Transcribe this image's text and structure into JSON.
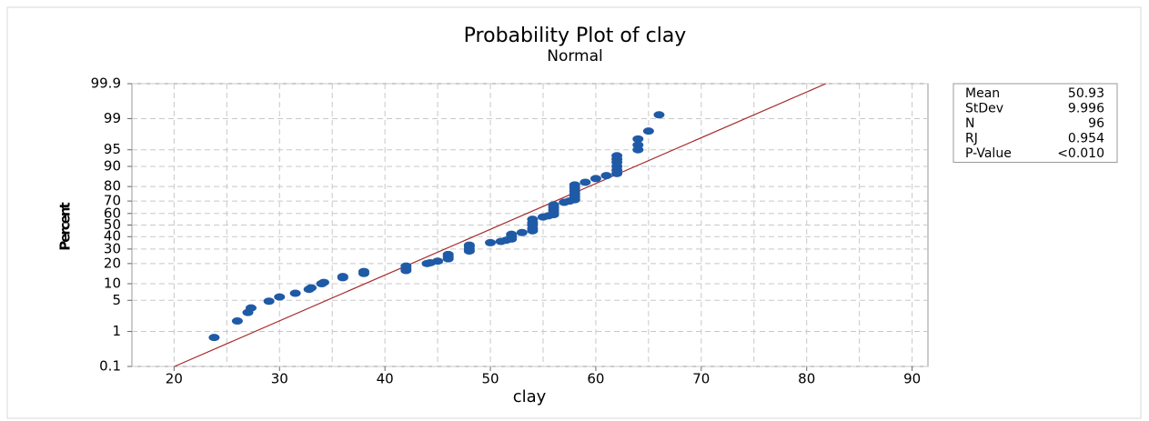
{
  "chart_data": {
    "type": "probability",
    "title": "Probability Plot of clay",
    "subtitle": "Normal",
    "x_label": "clay",
    "y_label": "Percent",
    "color": "#1f5aa6",
    "fit_color": "#a52a2a",
    "x": [
      23.8,
      26,
      27,
      27.3,
      29,
      30,
      31.5,
      32.8,
      33,
      34,
      34.2,
      36,
      36,
      38,
      38,
      42,
      42,
      42,
      44,
      44.3,
      45,
      46,
      46,
      46,
      48,
      48,
      48,
      48,
      50,
      51,
      51.5,
      52,
      52,
      52,
      53,
      54,
      54,
      54,
      54,
      54,
      55,
      55.5,
      56,
      56,
      56,
      56,
      56,
      57,
      57.5,
      58,
      58,
      58,
      58,
      58,
      58,
      59,
      60,
      61,
      62,
      62,
      62,
      62,
      62,
      62,
      64,
      64,
      64,
      65,
      66
    ],
    "values": [
      0.7,
      1.8,
      2.8,
      3.5,
      4.8,
      5.8,
      6.8,
      8,
      8.5,
      10,
      10.5,
      12.5,
      13,
      14.5,
      15.5,
      16,
      17,
      18.5,
      20,
      20.5,
      21.5,
      23,
      24.5,
      26,
      28.5,
      30,
      32,
      33,
      35,
      36,
      37,
      38,
      40,
      42,
      43.5,
      45,
      47,
      50,
      52,
      55,
      57,
      58,
      59,
      61,
      63,
      65,
      67,
      69,
      70,
      71,
      73,
      75,
      77,
      79,
      81,
      82.5,
      84.5,
      86,
      87,
      88.5,
      90,
      91.5,
      92.5,
      93.5,
      95,
      96,
      97,
      98,
      99.2
    ],
    "xlim": [
      16,
      91.5
    ],
    "xticks": [
      20,
      30,
      40,
      50,
      60,
      70,
      80,
      90
    ],
    "xgrid": [
      25,
      35,
      45,
      55,
      65,
      75,
      85
    ],
    "ylim": [
      0.1,
      99.9
    ],
    "yticks": [
      0.1,
      1,
      5,
      10,
      20,
      30,
      40,
      50,
      60,
      70,
      80,
      90,
      95,
      99,
      99.9
    ],
    "grid": true,
    "stats": [
      {
        "label": "Mean",
        "value": 50.93
      },
      {
        "label": "StDev",
        "value": 9.996
      },
      {
        "label": "N",
        "value": 96
      },
      {
        "label": "RJ",
        "value": 0.954
      },
      {
        "label": "P-Value",
        "value": "<0.010"
      }
    ]
  }
}
